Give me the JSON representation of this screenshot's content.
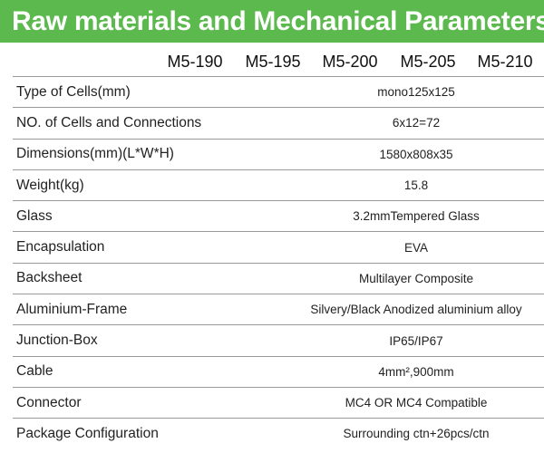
{
  "title": "Raw materials and Mechanical Parameters",
  "colors": {
    "banner": "#5cb94e",
    "banner_text": "#ffffff",
    "rule": "#9a9a9a"
  },
  "models": [
    "M5-190",
    "M5-195",
    "M5-200",
    "M5-205",
    "M5-210"
  ],
  "rows": [
    {
      "label": "Type of Cells(mm)",
      "value": "mono125x125"
    },
    {
      "label": "NO. of Cells and Connections",
      "value": "6x12=72"
    },
    {
      "label": "Dimensions(mm)(L*W*H)",
      "value": "1580x808x35"
    },
    {
      "label": "Weight(kg)",
      "value": "15.8"
    },
    {
      "label": "Glass",
      "value": "3.2mmTempered Glass"
    },
    {
      "label": "Encapsulation",
      "value": "EVA"
    },
    {
      "label": "Backsheet",
      "value": "Multilayer Composite"
    },
    {
      "label": "Aluminium-Frame",
      "value": "Silvery/Black Anodized aluminium alloy"
    },
    {
      "label": "Junction-Box",
      "value": "IP65/IP67"
    },
    {
      "label": "Cable",
      "value": "4mm²,900mm"
    },
    {
      "label": "Connector",
      "value": "MC4 OR MC4 Compatible"
    },
    {
      "label": "Package Configuration",
      "value": "Surrounding ctn+26pcs/ctn"
    }
  ]
}
